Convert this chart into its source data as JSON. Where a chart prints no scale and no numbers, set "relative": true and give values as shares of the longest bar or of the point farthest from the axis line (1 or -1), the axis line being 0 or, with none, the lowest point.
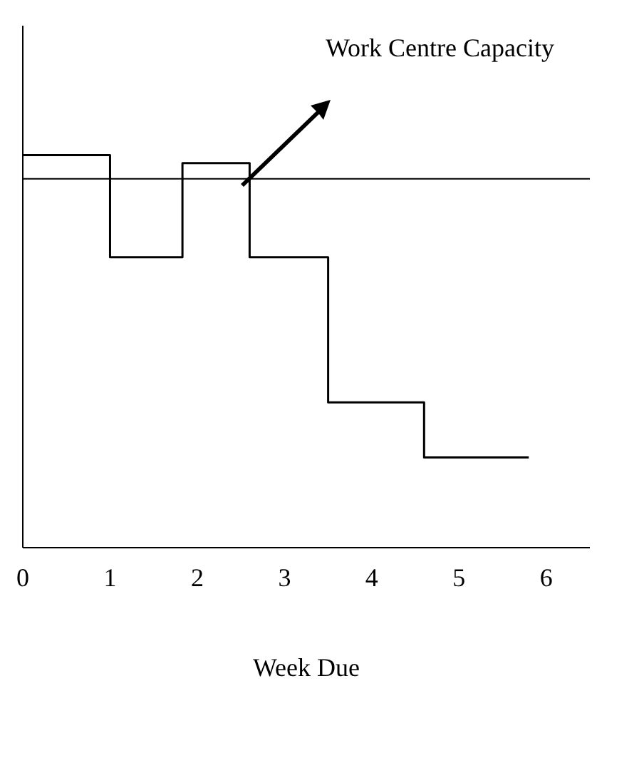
{
  "chart_data": {
    "type": "step",
    "xlabel": "Week Due",
    "relative": true,
    "x": [
      0,
      1,
      1.83,
      2.6,
      3.5,
      4.6,
      5.8
    ],
    "series": [
      {
        "color": "#000000",
        "values": [
          1,
          0.74,
          0.98,
          0.74,
          0.37,
          0.23,
          0.23
        ]
      }
    ],
    "xlim": [
      0,
      6.5
    ],
    "xticks": [
      0,
      1,
      2,
      3,
      4,
      5,
      6
    ],
    "ref_lines": [
      {
        "axis": "y",
        "value": 0.94,
        "label": "Work Centre Capacity",
        "color": "#000000"
      }
    ],
    "grid": false,
    "legend": false,
    "marker": "none",
    "line_style": "solid"
  }
}
